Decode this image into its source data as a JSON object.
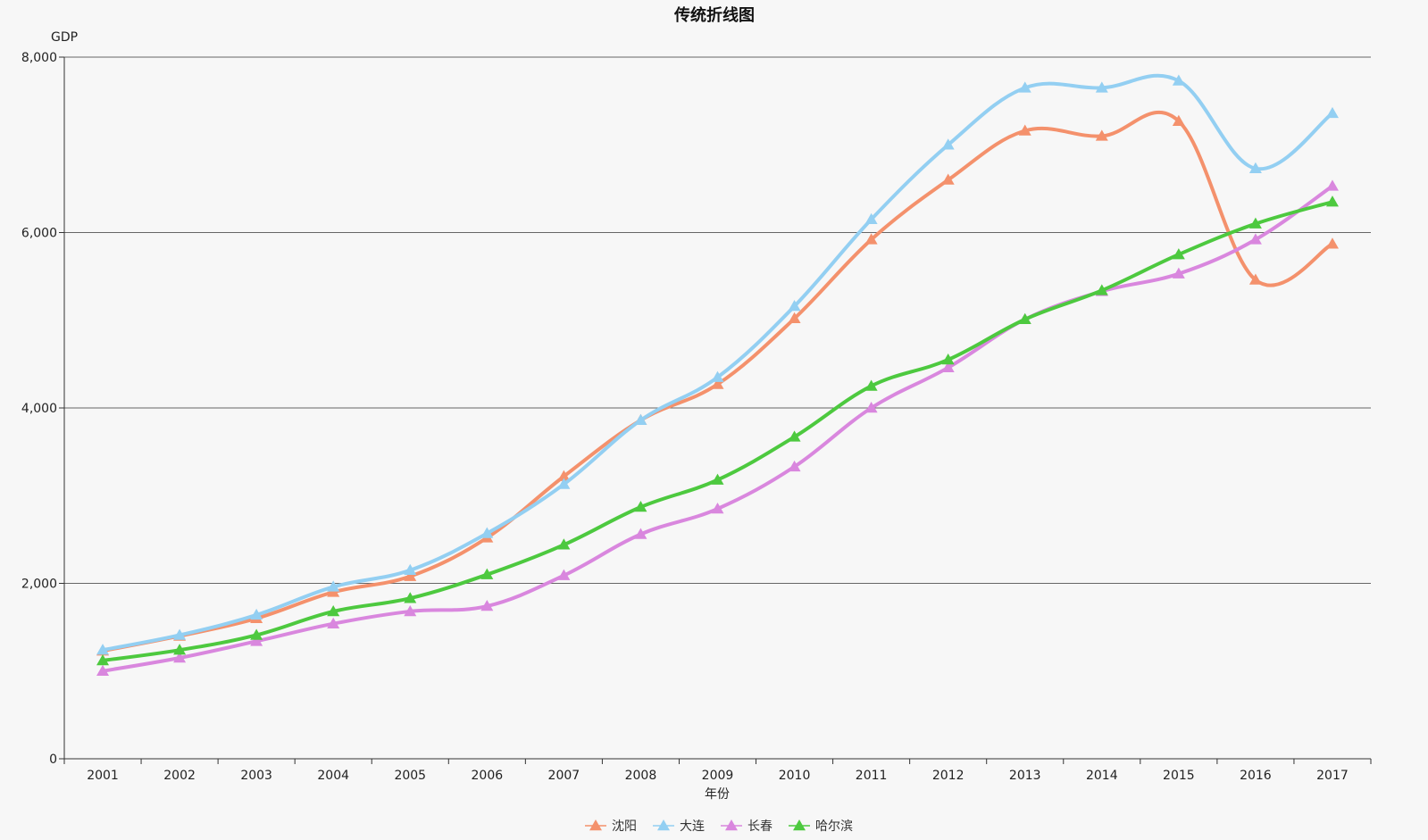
{
  "chart_data": {
    "type": "line",
    "title": "传统折线图",
    "xlabel": "年份",
    "ylabel": "GDP",
    "categories": [
      "2001",
      "2002",
      "2003",
      "2004",
      "2005",
      "2006",
      "2007",
      "2008",
      "2009",
      "2010",
      "2011",
      "2012",
      "2013",
      "2014",
      "2015",
      "2016",
      "2017"
    ],
    "ylim": [
      0,
      8000
    ],
    "yticks": [
      0,
      2000,
      4000,
      6000,
      8000
    ],
    "ytick_labels": [
      "0",
      "2,000",
      "4,000",
      "6,000",
      "8,000"
    ],
    "grid": true,
    "legend_position": "bottom",
    "smooth": true,
    "marker": "triangle",
    "series": [
      {
        "name": "沈阳",
        "color": "#f4916c",
        "values": [
          1230,
          1400,
          1600,
          1900,
          2080,
          2520,
          3220,
          3860,
          4270,
          5020,
          5920,
          6600,
          7160,
          7100,
          7270,
          5460,
          5870
        ]
      },
      {
        "name": "大连",
        "color": "#93cff2",
        "values": [
          1240,
          1410,
          1640,
          1960,
          2150,
          2570,
          3130,
          3860,
          4350,
          5160,
          6150,
          7000,
          7650,
          7650,
          7730,
          6730,
          7360
        ]
      },
      {
        "name": "长春",
        "color": "#d987de",
        "values": [
          1000,
          1150,
          1340,
          1540,
          1680,
          1740,
          2090,
          2560,
          2850,
          3330,
          4000,
          4460,
          5010,
          5330,
          5530,
          5920,
          6530
        ]
      },
      {
        "name": "哈尔滨",
        "color": "#4dc93f",
        "values": [
          1120,
          1240,
          1410,
          1680,
          1830,
          2100,
          2440,
          2870,
          3180,
          3670,
          4250,
          4550,
          5010,
          5340,
          5750,
          6100,
          6350
        ]
      }
    ]
  }
}
